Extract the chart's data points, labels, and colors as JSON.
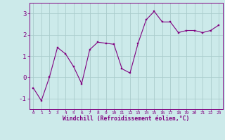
{
  "x": [
    0,
    1,
    2,
    3,
    4,
    5,
    6,
    7,
    8,
    9,
    10,
    11,
    12,
    13,
    14,
    15,
    16,
    17,
    18,
    19,
    20,
    21,
    22,
    23
  ],
  "y": [
    -0.5,
    -1.1,
    0.0,
    1.4,
    1.1,
    0.5,
    -0.3,
    1.3,
    1.65,
    1.6,
    1.55,
    0.4,
    0.2,
    1.6,
    2.7,
    3.1,
    2.6,
    2.6,
    2.1,
    2.2,
    2.2,
    2.1,
    2.2,
    2.45
  ],
  "line_color": "#800080",
  "marker_color": "#800080",
  "bg_color": "#cceaea",
  "grid_color": "#aacccc",
  "xlabel": "Windchill (Refroidissement éolien,°C)",
  "xlabel_color": "#800080",
  "tick_color": "#800080",
  "ylim": [
    -1.5,
    3.5
  ],
  "xlim": [
    -0.5,
    23.5
  ],
  "yticks": [
    -1,
    0,
    1,
    2,
    3
  ],
  "xticks": [
    0,
    1,
    2,
    3,
    4,
    5,
    6,
    7,
    8,
    9,
    10,
    11,
    12,
    13,
    14,
    15,
    16,
    17,
    18,
    19,
    20,
    21,
    22,
    23
  ]
}
